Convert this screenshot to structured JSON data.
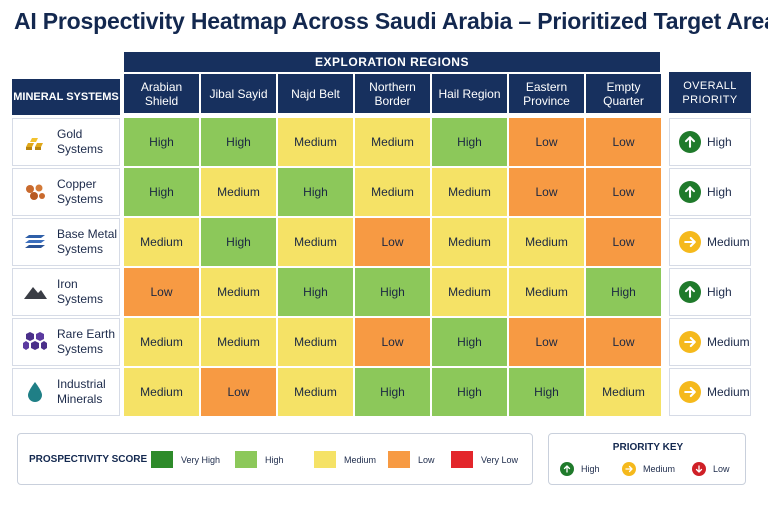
{
  "title": "AI Prospectivity Heatmap Across Saudi Arabia – Prioritized Target Areas",
  "regions_banner": "EXPLORATION REGIONS",
  "mineral_header": "MINERAL SYSTEMS",
  "overall_header": "OVERALL PRIORITY",
  "colors": {
    "Very High": "#2e8b2a",
    "High": "#8cc85a",
    "Medium": "#f5e266",
    "Low": "#f79a43",
    "Very Low": "#e3262b",
    "header": "#17305e",
    "arrow_high": "#1f7a2b",
    "arrow_medium": "#f5b91c",
    "arrow_low": "#cf2027"
  },
  "chart_data": {
    "type": "heatmap",
    "title": "AI Prospectivity Heatmap Across Saudi Arabia – Prioritized Target Areas",
    "x_group_label": "EXPLORATION REGIONS",
    "y_group_label": "MINERAL SYSTEMS",
    "regions": [
      "Arabian Shield",
      "Jibal Sayid",
      "Najd Belt",
      "Northern Border",
      "Hail Region",
      "Eastern Province",
      "Empty Quarter"
    ],
    "minerals": [
      {
        "name": "Gold Systems",
        "icon": "gold-bars-icon"
      },
      {
        "name": "Copper Systems",
        "icon": "copper-nuggets-icon"
      },
      {
        "name": "Base Metal Systems",
        "icon": "base-metal-plates-icon"
      },
      {
        "name": "Iron Systems",
        "icon": "iron-mountain-icon"
      },
      {
        "name": "Rare Earth Systems",
        "icon": "rare-earth-hexagons-icon"
      },
      {
        "name": "Industrial Minerals",
        "icon": "water-drop-icon"
      }
    ],
    "values": [
      [
        "High",
        "High",
        "Medium",
        "Medium",
        "High",
        "Low",
        "Low"
      ],
      [
        "High",
        "Medium",
        "High",
        "Medium",
        "Medium",
        "Low",
        "Low"
      ],
      [
        "Medium",
        "High",
        "Medium",
        "Low",
        "Medium",
        "Medium",
        "Low"
      ],
      [
        "Low",
        "Medium",
        "High",
        "High",
        "Medium",
        "Medium",
        "High"
      ],
      [
        "Medium",
        "Medium",
        "Medium",
        "Low",
        "High",
        "Low",
        "Low"
      ],
      [
        "Medium",
        "Low",
        "Medium",
        "High",
        "High",
        "High",
        "Medium"
      ]
    ],
    "overall_priority": [
      "High",
      "High",
      "Medium",
      "High",
      "Medium",
      "Medium"
    ],
    "legend": {
      "title": "PROSPECTIVITY SCORE",
      "items": [
        {
          "label": "Very High"
        },
        {
          "label": "High"
        },
        {
          "label": "Medium"
        },
        {
          "label": "Low"
        },
        {
          "label": "Very Low"
        }
      ]
    },
    "priority_key": {
      "title": "PRIORITY KEY",
      "items": [
        {
          "label": "High",
          "direction": "up"
        },
        {
          "label": "Medium",
          "direction": "right"
        },
        {
          "label": "Low",
          "direction": "down"
        }
      ]
    }
  }
}
